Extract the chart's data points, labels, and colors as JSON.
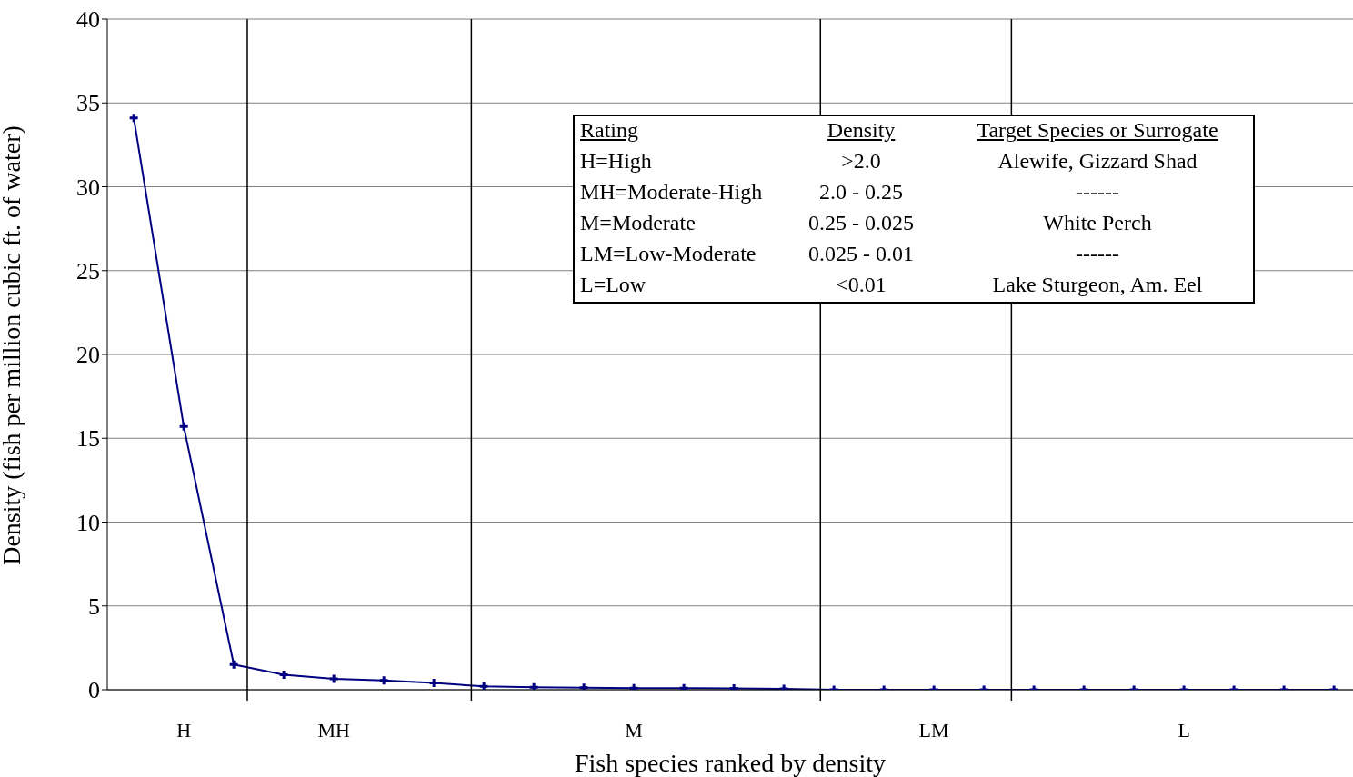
{
  "chart_data": {
    "type": "line",
    "xlabel": "Fish species ranked by density",
    "ylabel": "Density (fish per million cubic ft. of water)",
    "categories": [
      null,
      "H",
      null,
      null,
      "MH",
      null,
      null,
      null,
      null,
      null,
      "M",
      null,
      null,
      null,
      null,
      null,
      "LM",
      null,
      null,
      null,
      null,
      "L",
      null,
      null,
      null
    ],
    "series": [
      {
        "color": "#000080",
        "values": [
          34.1,
          15.7,
          1.5,
          0.9,
          0.65,
          0.55,
          0.4,
          0.2,
          0.15,
          0.12,
          0.1,
          0.1,
          0.08,
          0.05,
          0,
          0,
          0,
          0,
          0,
          0,
          0,
          0,
          0,
          0,
          0
        ]
      }
    ],
    "ylim": [
      0,
      40
    ],
    "yticks": [
      0,
      5,
      10,
      15,
      20,
      25,
      30,
      35,
      40
    ],
    "grid": "y",
    "marker": "cross",
    "annotations": [
      "Rating",
      "Density",
      "Target Species or Surrogate",
      "H=High",
      ">2.0",
      "Alewife, Gizzard Shad",
      "MH=Moderate-High",
      "2.0 - 0.25",
      "------",
      "M=Moderate",
      "0.25 - 0.025",
      "White Perch",
      "LM=Low-Moderate",
      "0.025 - 0.01",
      "------",
      "L=Low",
      "<0.01",
      "Lake Sturgeon, Am. Eel"
    ]
  }
}
